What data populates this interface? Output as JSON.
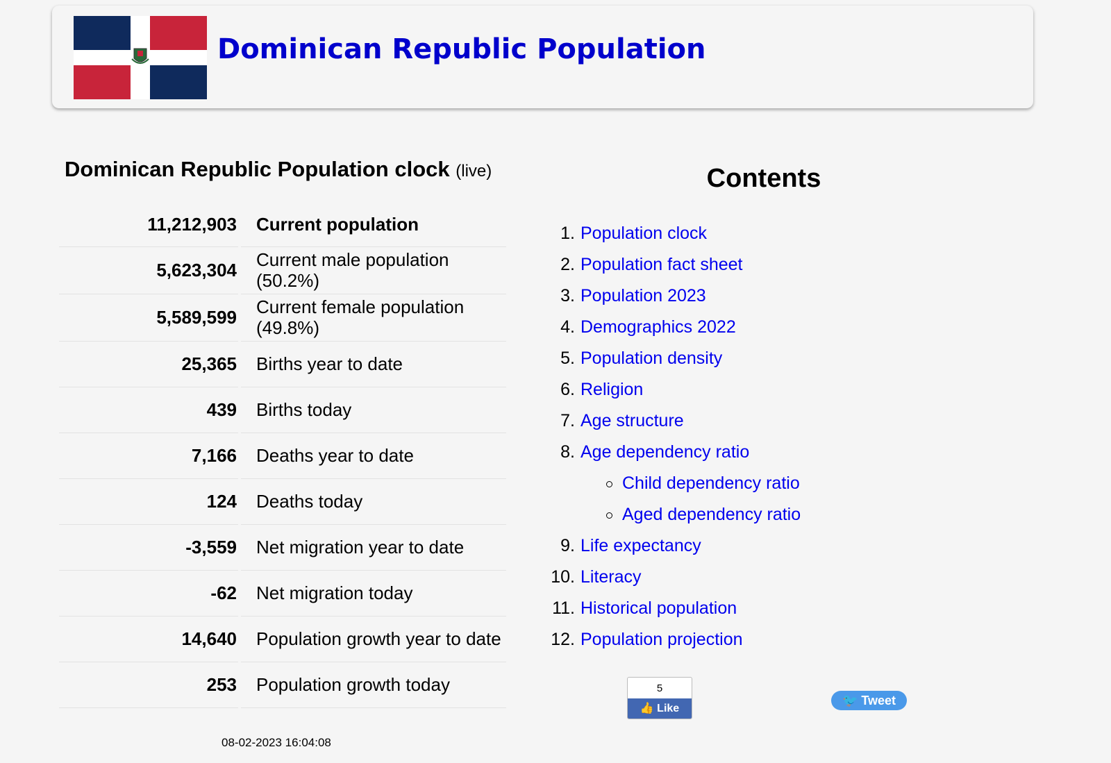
{
  "header": {
    "title": "Dominican Republic Population"
  },
  "clock": {
    "title": "Dominican Republic Population clock",
    "note": "(live)",
    "rows": [
      {
        "value": "11,212,903",
        "label": "Current population"
      },
      {
        "value": "5,623,304",
        "label": "Current male population (50.2%)"
      },
      {
        "value": "5,589,599",
        "label": "Current female population (49.8%)"
      },
      {
        "value": "25,365",
        "label": "Births year to date"
      },
      {
        "value": "439",
        "label": "Births today"
      },
      {
        "value": "7,166",
        "label": "Deaths year to date"
      },
      {
        "value": "124",
        "label": "Deaths today"
      },
      {
        "value": "-3,559",
        "label": "Net migration year to date"
      },
      {
        "value": "-62",
        "label": "Net migration today"
      },
      {
        "value": "14,640",
        "label": "Population growth year to date"
      },
      {
        "value": "253",
        "label": "Population growth today"
      }
    ],
    "timestamp": "08-02-2023 16:04:08"
  },
  "contents": {
    "title": "Contents",
    "items": [
      {
        "number": "1.",
        "text": "Population clock"
      },
      {
        "number": "2.",
        "text": "Population fact sheet"
      },
      {
        "number": "3.",
        "text": "Population 2023"
      },
      {
        "number": "4.",
        "text": "Demographics 2022"
      },
      {
        "number": "5.",
        "text": "Population density"
      },
      {
        "number": "6.",
        "text": "Religion"
      },
      {
        "number": "7.",
        "text": "Age structure"
      },
      {
        "number": "8.",
        "text": "Age dependency ratio",
        "subitems": [
          "Child dependency ratio",
          "Aged dependency ratio"
        ]
      },
      {
        "number": "9.",
        "text": "Life expectancy"
      },
      {
        "number": "10.",
        "text": "Literacy"
      },
      {
        "number": "11.",
        "text": "Historical population"
      },
      {
        "number": "12.",
        "text": "Population projection"
      }
    ]
  },
  "social": {
    "like_count": "5",
    "like": "Like",
    "tweet": "Tweet"
  }
}
